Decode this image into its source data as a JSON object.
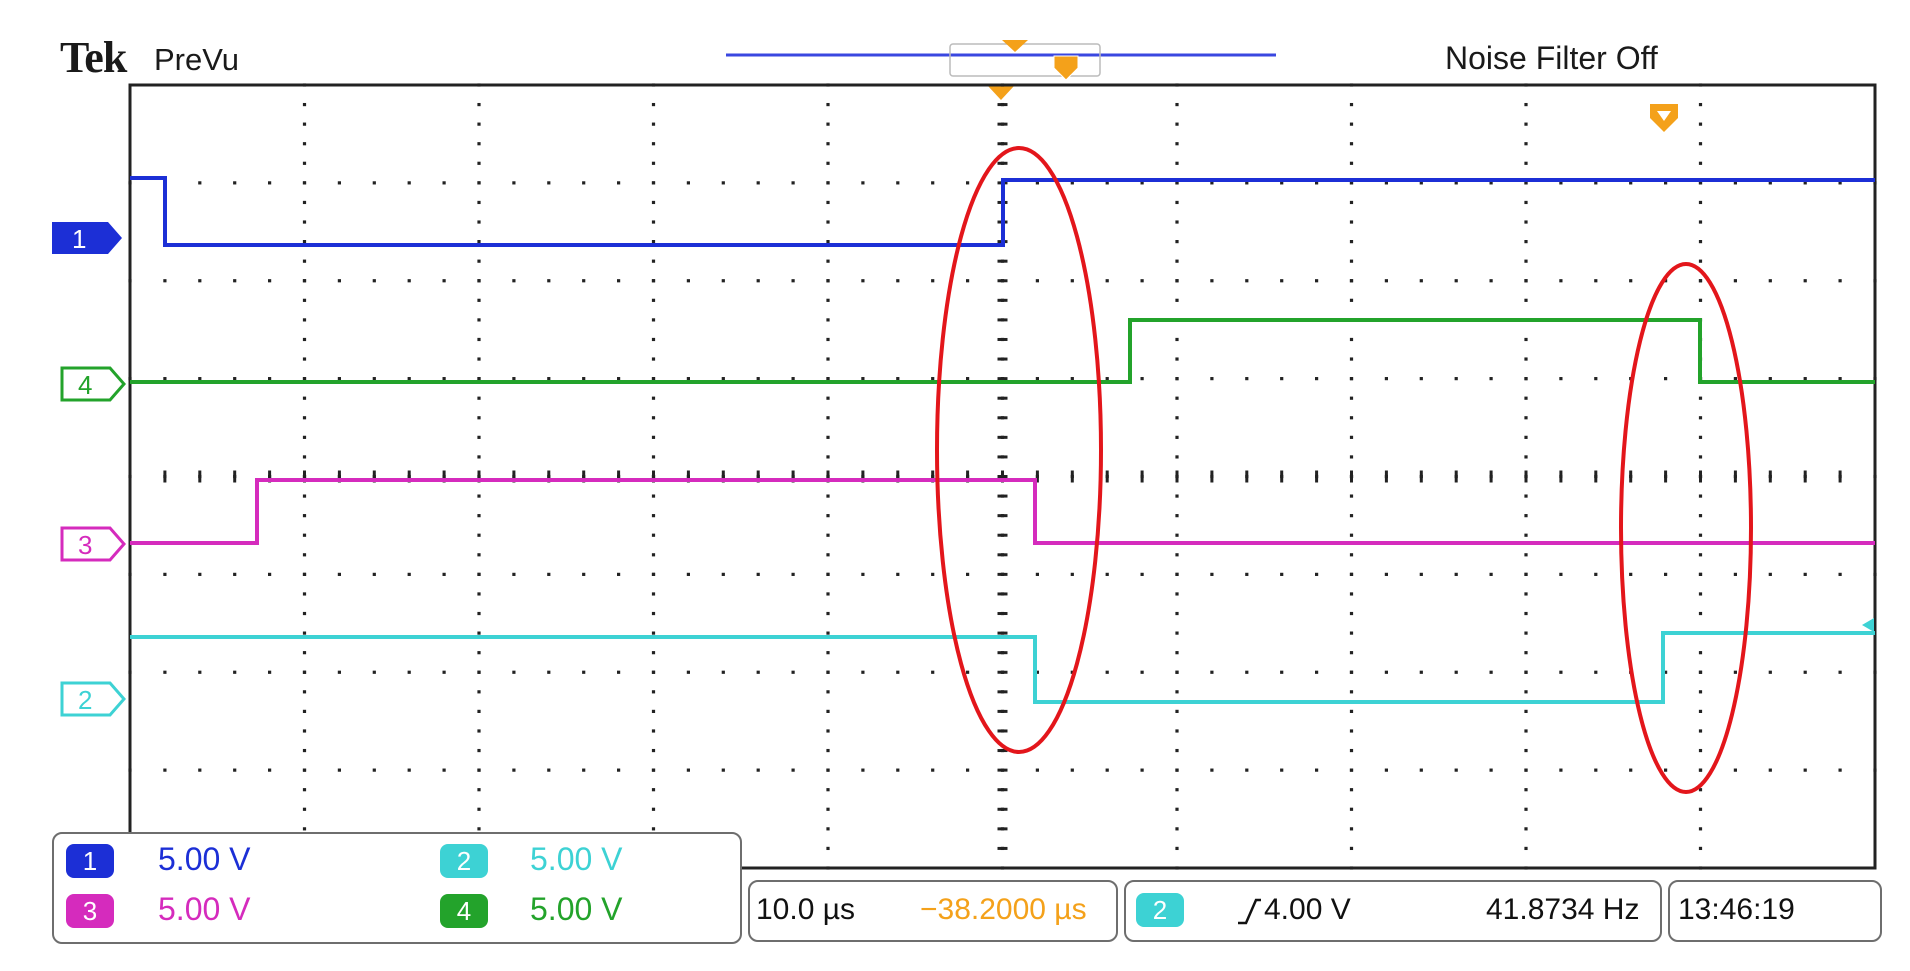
{
  "header": {
    "brand": "Tek",
    "mode": "PreVu",
    "noise_filter": "Noise Filter Off"
  },
  "colors": {
    "ch1": "#1c2fd6",
    "ch2": "#3dd2d4",
    "ch3": "#d52bbd",
    "ch4": "#23a32b",
    "grid": "#222222",
    "annotation": "#e3161b",
    "trigger_marker": "#f4a11a"
  },
  "channel_markers": [
    {
      "label": "1",
      "color": "#1c2fd6",
      "filled": true
    },
    {
      "label": "4",
      "color": "#23a32b",
      "filled": false
    },
    {
      "label": "3",
      "color": "#d52bbd",
      "filled": false
    },
    {
      "label": "2",
      "color": "#3dd2d4",
      "filled": false
    }
  ],
  "channels": [
    {
      "label": "1",
      "scale": "5.00 V",
      "color": "#1c2fd6"
    },
    {
      "label": "2",
      "scale": "5.00 V",
      "color": "#3dd2d4"
    },
    {
      "label": "3",
      "scale": "5.00 V",
      "color": "#d52bbd"
    },
    {
      "label": "4",
      "scale": "5.00 V",
      "color": "#23a32b"
    }
  ],
  "horizontal": {
    "time_per_div": "10.0 µs",
    "position": "−38.2000 µs"
  },
  "trigger": {
    "source": "2",
    "slope_icon": "rising-edge-icon",
    "level": "4.00 V",
    "frequency": "41.8734 Hz"
  },
  "clock": "13:46:19"
}
